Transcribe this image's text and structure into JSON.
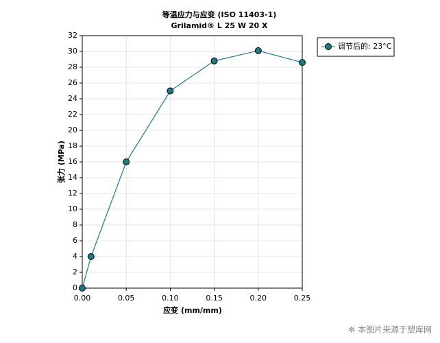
{
  "chart_data": {
    "type": "line",
    "title": "等温应力与应变 (ISO 11403-1)",
    "subtitle": "Grilamid® L 25 W 20 X",
    "x_label": "应变 (mm/mm)",
    "y_label": "张力 (MPa)",
    "x": [
      0,
      0.01,
      0.05,
      0.1,
      0.15,
      0.2,
      0.25
    ],
    "series": [
      {
        "name": "调节后的: 23°C",
        "color": "#1b7a82",
        "values": [
          0,
          4,
          16,
          25,
          28.8,
          30.1,
          28.6
        ]
      }
    ],
    "xlim": [
      0,
      0.25
    ],
    "xticks": [
      {
        "value": 0,
        "label": "0.00"
      },
      0.05,
      {
        "value": 0.1,
        "label": "0.10"
      },
      0.15,
      {
        "value": 0.2,
        "label": "0.20"
      },
      0.25
    ],
    "ylim": [
      0,
      32
    ],
    "yticks": [
      0,
      2,
      4,
      6,
      8,
      10,
      12,
      14,
      16,
      18,
      20,
      22,
      24,
      26,
      28,
      30,
      32
    ],
    "grid": true,
    "legend": "right",
    "watermark": "✻ 本图片来源于塑库网"
  }
}
